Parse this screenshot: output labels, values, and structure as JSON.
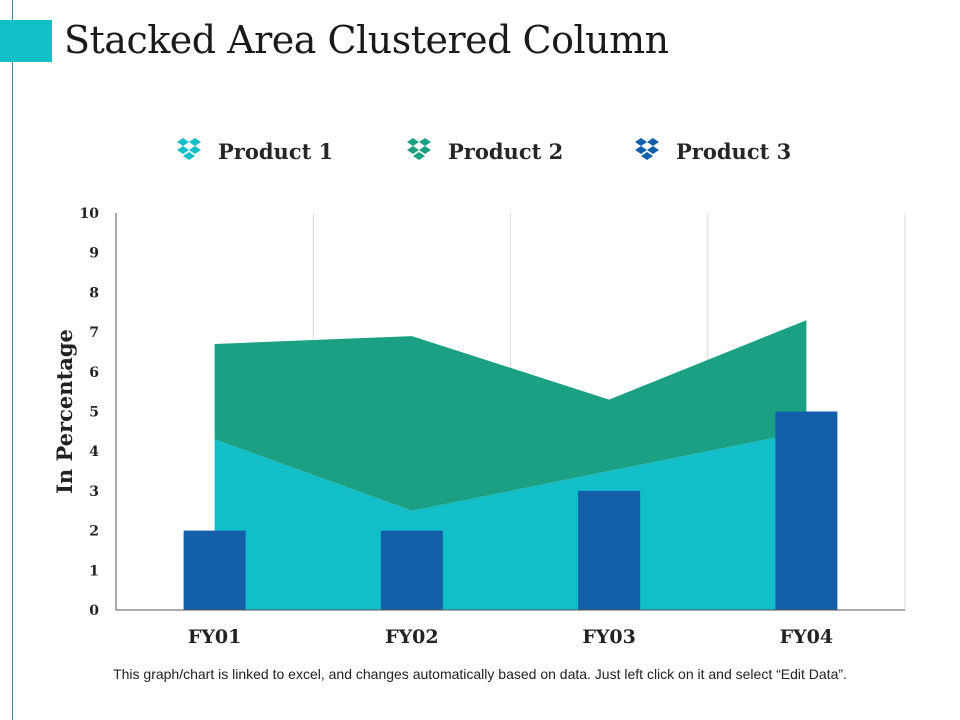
{
  "title": "Stacked Area Clustered Column",
  "legend": [
    {
      "label": "Product 1",
      "color": "#12BFC8"
    },
    {
      "label": "Product 2",
      "color": "#1BA083"
    },
    {
      "label": "Product 3",
      "color": "#135FA9"
    }
  ],
  "chart_data": {
    "type": "area+bar",
    "categories": [
      "FY01",
      "FY02",
      "FY03",
      "FY04"
    ],
    "series": [
      {
        "name": "Product 1",
        "kind": "stacked-area",
        "values": [
          4.3,
          2.5,
          3.5,
          4.5
        ],
        "color": "#12BFC8"
      },
      {
        "name": "Product 2",
        "kind": "stacked-area",
        "values": [
          2.4,
          4.4,
          1.8,
          2.8
        ],
        "color": "#1BA083"
      },
      {
        "name": "Product 3",
        "kind": "clustered-column",
        "values": [
          2,
          2,
          3,
          5
        ],
        "color": "#135FA9"
      }
    ],
    "yticks": [
      "0",
      "1",
      "2",
      "3",
      "4",
      "5",
      "6",
      "7",
      "8",
      "9",
      "10"
    ],
    "xtick_labels": [
      "FY01",
      "FY02",
      "FY03",
      "FY04"
    ],
    "ylim": [
      0,
      10
    ],
    "ylabel": "In Percentage",
    "xlabel": "",
    "grid": "vertical",
    "legend_position": "top"
  },
  "footnote": "This graph/chart is linked to excel, and changes automatically  based on data. Just left click on it and select “Edit Data”."
}
